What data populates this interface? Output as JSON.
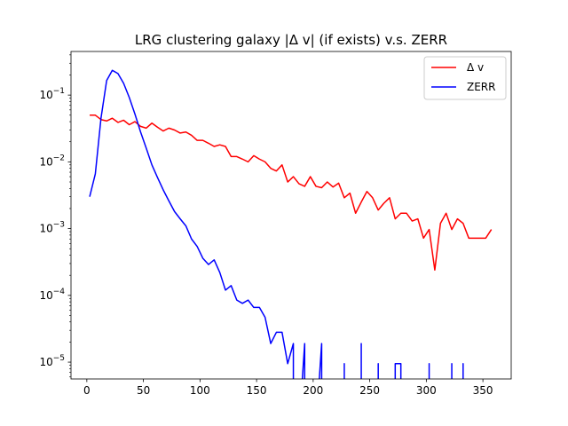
{
  "chart_data": {
    "type": "line",
    "title": "LRG clustering galaxy |Δ v| (if exists) v.s. ZERR",
    "xlabel": "",
    "ylabel": "",
    "xlim": [
      -14,
      375
    ],
    "ylim": [
      5.6e-06,
      0.45
    ],
    "yscale": "log",
    "x_ticks": [
      0,
      50,
      100,
      150,
      200,
      250,
      300,
      350
    ],
    "y_ticks": [
      {
        "value": 0.1,
        "base": "10",
        "exp": "−1"
      },
      {
        "value": 0.01,
        "base": "10",
        "exp": "−2"
      },
      {
        "value": 0.001,
        "base": "10",
        "exp": "−3"
      },
      {
        "value": 0.0001,
        "base": "10",
        "exp": "−4"
      },
      {
        "value": 1e-05,
        "base": "10",
        "exp": "−5"
      }
    ],
    "grid": false,
    "legend": {
      "placement": "top-right"
    },
    "series": [
      {
        "name": "Δ v",
        "color": "#ff0000",
        "points": [
          [
            2.5,
            0.05
          ],
          [
            7.5,
            0.05
          ],
          [
            12.5,
            0.043
          ],
          [
            17.5,
            0.041
          ],
          [
            22.5,
            0.045
          ],
          [
            27.5,
            0.039
          ],
          [
            32.5,
            0.042
          ],
          [
            37.5,
            0.036
          ],
          [
            42.5,
            0.04
          ],
          [
            47.5,
            0.034
          ],
          [
            52.5,
            0.032
          ],
          [
            57.5,
            0.038
          ],
          [
            62.5,
            0.033
          ],
          [
            67.5,
            0.029
          ],
          [
            72.5,
            0.032
          ],
          [
            77.5,
            0.03
          ],
          [
            82.5,
            0.027
          ],
          [
            87.5,
            0.028
          ],
          [
            92.5,
            0.025
          ],
          [
            97.5,
            0.021
          ],
          [
            102.5,
            0.021
          ],
          [
            107.5,
            0.019
          ],
          [
            112.5,
            0.017
          ],
          [
            117.5,
            0.018
          ],
          [
            122.5,
            0.017
          ],
          [
            127.5,
            0.012
          ],
          [
            132.5,
            0.012
          ],
          [
            137.5,
            0.011
          ],
          [
            142.5,
            0.01
          ],
          [
            147.5,
            0.0124
          ],
          [
            152.5,
            0.011
          ],
          [
            157.5,
            0.01
          ],
          [
            162.5,
            0.008
          ],
          [
            167.5,
            0.0073
          ],
          [
            172.5,
            0.009
          ],
          [
            177.5,
            0.005
          ],
          [
            182.5,
            0.006
          ],
          [
            187.5,
            0.0047
          ],
          [
            192.5,
            0.0043
          ],
          [
            197.5,
            0.006
          ],
          [
            202.5,
            0.0043
          ],
          [
            207.5,
            0.0041
          ],
          [
            212.5,
            0.005
          ],
          [
            217.5,
            0.0042
          ],
          [
            222.5,
            0.0048
          ],
          [
            227.5,
            0.0029
          ],
          [
            232.5,
            0.0034
          ],
          [
            237.5,
            0.0017
          ],
          [
            242.5,
            0.0025
          ],
          [
            247.5,
            0.0036
          ],
          [
            252.5,
            0.0029
          ],
          [
            257.5,
            0.0019
          ],
          [
            262.5,
            0.0024
          ],
          [
            267.5,
            0.0029
          ],
          [
            272.5,
            0.0014
          ],
          [
            277.5,
            0.0017
          ],
          [
            282.5,
            0.0017
          ],
          [
            287.5,
            0.0013
          ],
          [
            292.5,
            0.0014
          ],
          [
            297.5,
            0.00072
          ],
          [
            302.5,
            0.00097
          ],
          [
            307.5,
            0.00024
          ],
          [
            312.5,
            0.0012
          ],
          [
            317.5,
            0.0017
          ],
          [
            322.5,
            0.00097
          ],
          [
            327.5,
            0.0014
          ],
          [
            332.5,
            0.0012
          ],
          [
            337.5,
            0.00072
          ],
          [
            342.5,
            0.00072
          ],
          [
            347.5,
            0.00072
          ],
          [
            352.5,
            0.00072
          ],
          [
            357.5,
            0.00097
          ]
        ]
      },
      {
        "name": "ZERR",
        "color": "#0000ff",
        "points": [
          [
            2.5,
            0.003
          ],
          [
            7.5,
            0.0066
          ],
          [
            12.5,
            0.045
          ],
          [
            17.5,
            0.165
          ],
          [
            22.5,
            0.235
          ],
          [
            27.5,
            0.21
          ],
          [
            32.5,
            0.15
          ],
          [
            37.5,
            0.092
          ],
          [
            42.5,
            0.052
          ],
          [
            47.5,
            0.028
          ],
          [
            52.5,
            0.016
          ],
          [
            57.5,
            0.009
          ],
          [
            62.5,
            0.0058
          ],
          [
            67.5,
            0.0038
          ],
          [
            72.5,
            0.0026
          ],
          [
            77.5,
            0.0018
          ],
          [
            82.5,
            0.0014
          ],
          [
            87.5,
            0.0011
          ],
          [
            92.5,
            0.0007
          ],
          [
            97.5,
            0.00054
          ],
          [
            102.5,
            0.00036
          ],
          [
            107.5,
            0.00029
          ],
          [
            112.5,
            0.00034
          ],
          [
            117.5,
            0.00022
          ],
          [
            122.5,
            0.00012
          ],
          [
            127.5,
            0.00014
          ],
          [
            132.5,
            8.5e-05
          ],
          [
            137.5,
            7.6e-05
          ],
          [
            142.5,
            8.5e-05
          ],
          [
            147.5,
            6.6e-05
          ],
          [
            152.5,
            6.6e-05
          ],
          [
            157.5,
            4.7e-05
          ],
          [
            162.5,
            1.9e-05
          ],
          [
            167.5,
            2.8e-05
          ],
          [
            172.5,
            2.8e-05
          ],
          [
            177.5,
            9.5e-06
          ],
          [
            182.5,
            1.9e-05
          ],
          [
            182.5,
            1e-06
          ],
          [
            187.5,
            1e-06
          ],
          [
            192.5,
            1.9e-05
          ],
          [
            192.5,
            1e-06
          ],
          [
            202.5,
            1e-06
          ],
          [
            207.5,
            1.9e-05
          ],
          [
            207.5,
            1e-06
          ],
          [
            227.5,
            1e-06
          ],
          [
            227.5,
            9.5e-06
          ],
          [
            227.5,
            1e-06
          ],
          [
            242.5,
            1e-06
          ],
          [
            242.5,
            1.9e-05
          ],
          [
            242.5,
            1e-06
          ],
          [
            257.5,
            1e-06
          ],
          [
            257.5,
            9.5e-06
          ],
          [
            257.5,
            1e-06
          ],
          [
            272.5,
            1e-06
          ],
          [
            272.5,
            9.5e-06
          ],
          [
            277.5,
            9.5e-06
          ],
          [
            277.5,
            1e-06
          ],
          [
            302.5,
            1e-06
          ],
          [
            302.5,
            9.5e-06
          ],
          [
            302.5,
            1e-06
          ],
          [
            322.5,
            1e-06
          ],
          [
            322.5,
            9.5e-06
          ],
          [
            322.5,
            1e-06
          ],
          [
            332.5,
            1e-06
          ],
          [
            332.5,
            9.5e-06
          ],
          [
            332.5,
            1e-06
          ]
        ]
      }
    ]
  }
}
